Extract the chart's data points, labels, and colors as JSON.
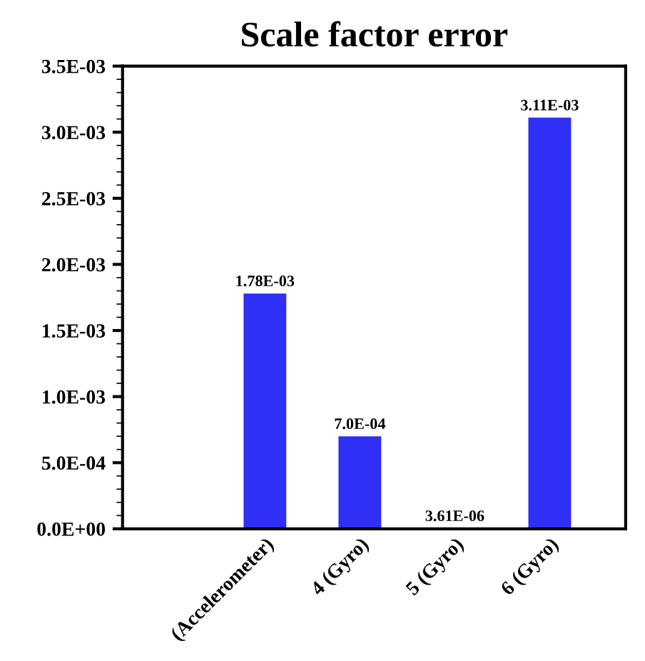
{
  "chart_data": {
    "type": "bar",
    "title": "Scale factor error",
    "categories": [
      "(Accelerometer)",
      "4 (Gyro)",
      "5 (Gyro)",
      "6 (Gyro)"
    ],
    "values": [
      0.00178,
      0.0007,
      3.61e-06,
      0.00311
    ],
    "value_labels": [
      "1.78E-03",
      "7.0E-04",
      "3.61E-06",
      "3.11E-03"
    ],
    "color": "#2f2ff5",
    "ylim": [
      0,
      0.0035
    ],
    "yticks": [
      {
        "value": 0,
        "label": "0.0E+00"
      },
      {
        "value": 0.0005,
        "label": "5.0E-04"
      },
      {
        "value": 0.001,
        "label": "1.0E-03"
      },
      {
        "value": 0.0015,
        "label": "1.5E-03"
      },
      {
        "value": 0.002,
        "label": "2.0E-03"
      },
      {
        "value": 0.0025,
        "label": "2.5E-03"
      },
      {
        "value": 0.003,
        "label": "3.0E-03"
      },
      {
        "value": 0.0035,
        "label": "3.5E-03"
      }
    ],
    "grid": false,
    "legend": false
  }
}
